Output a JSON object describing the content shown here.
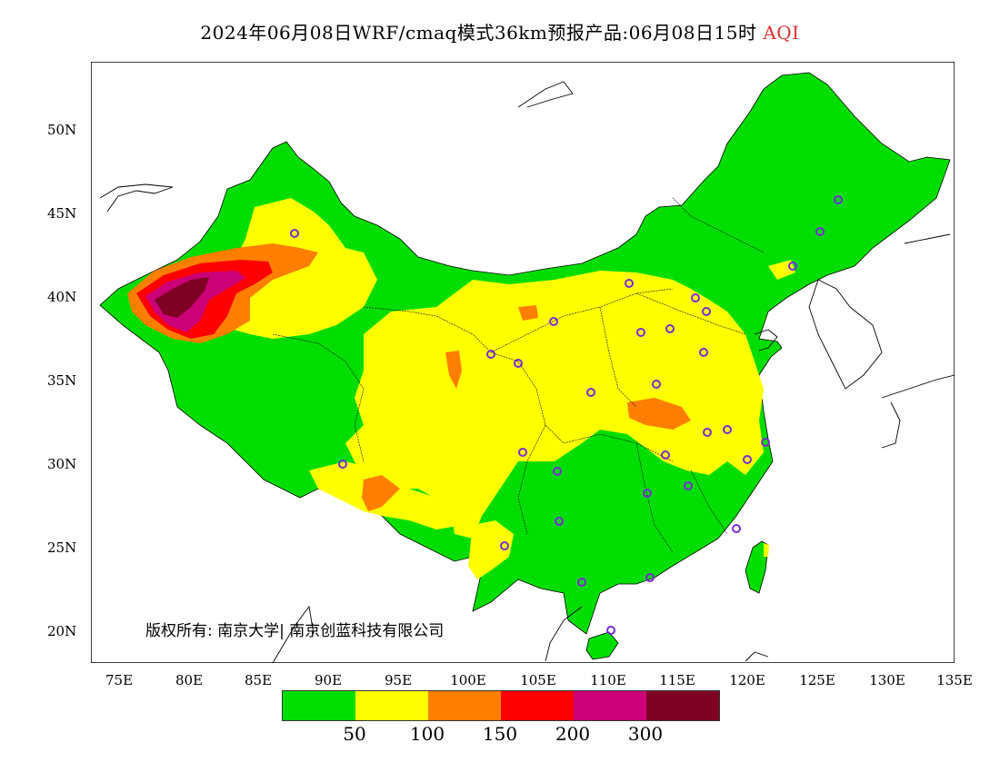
{
  "title": {
    "main": "2024年06月08日WRF/cmaq模式36km预报产品:06月08日15时",
    "variable": "AQI",
    "variable_color": "#e03030"
  },
  "axes": {
    "lat_labels": [
      "50N",
      "45N",
      "40N",
      "35N",
      "30N",
      "25N",
      "20N"
    ],
    "lon_labels": [
      "75E",
      "80E",
      "85E",
      "90E",
      "95E",
      "100E",
      "105E",
      "110E",
      "115E",
      "120E",
      "125E",
      "130E",
      "135E"
    ]
  },
  "copyright": "版权所有: 南京大学| 南京创蓝科技有限公司",
  "legend": {
    "colors": [
      "#00dd00",
      "#ffff00",
      "#ff7e00",
      "#ff0000",
      "#cc0077",
      "#7e0023"
    ],
    "labels": [
      "50",
      "100",
      "150",
      "200",
      "300"
    ]
  },
  "colors": {
    "land_outside": "#ffffff",
    "good": "#00dd00",
    "moderate": "#ffff00",
    "usg": "#ff7e00",
    "unhealthy": "#ff0000",
    "very_unhealthy": "#cc0077",
    "hazardous": "#7e0023",
    "station_marker": "#7b2bd6"
  }
}
